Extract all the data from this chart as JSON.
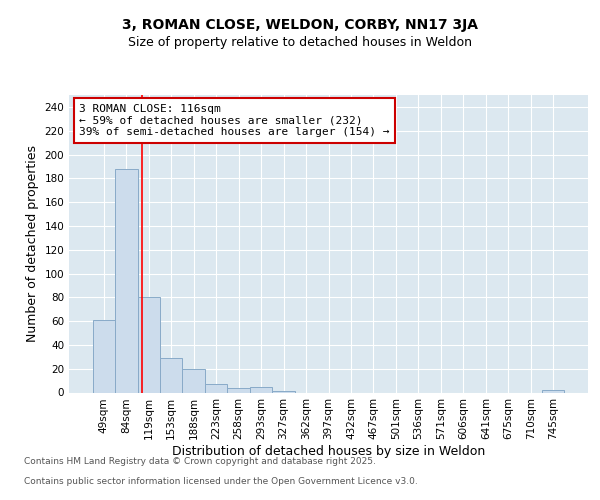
{
  "title": "3, ROMAN CLOSE, WELDON, CORBY, NN17 3JA",
  "subtitle": "Size of property relative to detached houses in Weldon",
  "xlabel": "Distribution of detached houses by size in Weldon",
  "ylabel": "Number of detached properties",
  "categories": [
    "49sqm",
    "84sqm",
    "119sqm",
    "153sqm",
    "188sqm",
    "223sqm",
    "258sqm",
    "293sqm",
    "327sqm",
    "362sqm",
    "397sqm",
    "432sqm",
    "467sqm",
    "501sqm",
    "536sqm",
    "571sqm",
    "606sqm",
    "641sqm",
    "675sqm",
    "710sqm",
    "745sqm"
  ],
  "bar_values": [
    61,
    188,
    80,
    29,
    20,
    7,
    4,
    5,
    1,
    0,
    0,
    0,
    0,
    0,
    0,
    0,
    0,
    0,
    0,
    0,
    2
  ],
  "bar_color": "#ccdcec",
  "bar_edge_color": "#88aac8",
  "background_color": "#dce8f0",
  "grid_color": "#ffffff",
  "fig_background": "#ffffff",
  "ylim": [
    0,
    250
  ],
  "yticks": [
    0,
    20,
    40,
    60,
    80,
    100,
    120,
    140,
    160,
    180,
    200,
    220,
    240
  ],
  "red_line_x": 1.72,
  "annotation_line1": "3 ROMAN CLOSE: 116sqm",
  "annotation_line2": "← 59% of detached houses are smaller (232)",
  "annotation_line3": "39% of semi-detached houses are larger (154) →",
  "annotation_box_color": "#ffffff",
  "annotation_box_edge": "#cc0000",
  "footer_line1": "Contains HM Land Registry data © Crown copyright and database right 2025.",
  "footer_line2": "Contains public sector information licensed under the Open Government Licence v3.0.",
  "title_fontsize": 10,
  "subtitle_fontsize": 9,
  "tick_fontsize": 7.5,
  "label_fontsize": 9,
  "annot_fontsize": 8,
  "footer_fontsize": 6.5
}
